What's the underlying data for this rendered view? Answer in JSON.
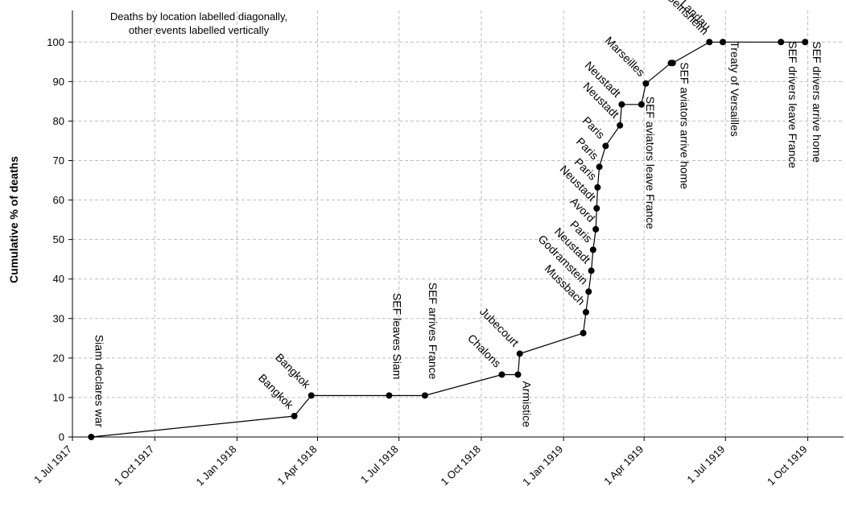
{
  "chart_data": {
    "type": "line",
    "title": "",
    "xlabel": "",
    "ylabel": "Cumulative % of deaths",
    "note_lines": [
      "Deaths by location labelled diagonally,",
      "other events labelled vertically"
    ],
    "xlim": [
      "1917-07-01",
      "1919-11-10"
    ],
    "ylim": [
      0,
      108
    ],
    "grid": true,
    "x_ticks": [
      {
        "date": "1917-07-01",
        "label": "1 Jul 1917"
      },
      {
        "date": "1917-10-01",
        "label": "1 Oct 1917"
      },
      {
        "date": "1918-01-01",
        "label": "1 Jan 1918"
      },
      {
        "date": "1918-04-01",
        "label": "1 Apr 1918"
      },
      {
        "date": "1918-07-01",
        "label": "1 Jul 1918"
      },
      {
        "date": "1918-10-01",
        "label": "1 Oct 1918"
      },
      {
        "date": "1919-01-01",
        "label": "1 Jan 1919"
      },
      {
        "date": "1919-04-01",
        "label": "1 Apr 1919"
      },
      {
        "date": "1919-07-01",
        "label": "1 Jul 1919"
      },
      {
        "date": "1919-10-01",
        "label": "1 Oct 1919"
      }
    ],
    "y_ticks": [
      0,
      10,
      20,
      30,
      40,
      50,
      60,
      70,
      80,
      90,
      100
    ],
    "series": [
      {
        "points": [
          {
            "x": "1917-07-22",
            "y": 0,
            "label": "Siam declares war",
            "kind": "event"
          },
          {
            "x": "1918-03-06",
            "y": 5.3,
            "label": "Bangkok",
            "kind": "death"
          },
          {
            "x": "1918-03-25",
            "y": 10.5,
            "label": "Bangkok",
            "kind": "death"
          },
          {
            "x": "1918-06-20",
            "y": 10.5,
            "label": "SEF leaves Siam",
            "kind": "event"
          },
          {
            "x": "1918-07-30",
            "y": 10.5,
            "label": "SEF arrives France",
            "kind": "event"
          },
          {
            "x": "1918-10-24",
            "y": 15.8,
            "label": "Chalons",
            "kind": "death"
          },
          {
            "x": "1918-11-11",
            "y": 15.8,
            "label": "Armistice",
            "kind": "event"
          },
          {
            "x": "1918-11-13",
            "y": 21.1,
            "label": "Jubecourt",
            "kind": "death"
          },
          {
            "x": "1919-01-23",
            "y": 26.3,
            "label": "",
            "kind": "death"
          },
          {
            "x": "1919-01-26",
            "y": 31.6,
            "label": "Mussbach",
            "kind": "death"
          },
          {
            "x": "1919-01-29",
            "y": 36.8,
            "label": "Godramstein",
            "kind": "death"
          },
          {
            "x": "1919-02-01",
            "y": 42.1,
            "label": "Neustadt",
            "kind": "death"
          },
          {
            "x": "1919-02-03",
            "y": 47.4,
            "label": "Paris",
            "kind": "death"
          },
          {
            "x": "1919-02-06",
            "y": 52.6,
            "label": "Avord",
            "kind": "death"
          },
          {
            "x": "1919-02-07",
            "y": 57.9,
            "label": "Neustadt",
            "kind": "death"
          },
          {
            "x": "1919-02-08",
            "y": 63.2,
            "label": "Paris",
            "kind": "death"
          },
          {
            "x": "1919-02-10",
            "y": 68.4,
            "label": "Paris",
            "kind": "death"
          },
          {
            "x": "1919-02-17",
            "y": 73.7,
            "label": "Paris",
            "kind": "death"
          },
          {
            "x": "1919-03-05",
            "y": 78.9,
            "label": "Neustadt",
            "kind": "death"
          },
          {
            "x": "1919-03-07",
            "y": 84.2,
            "label": "Neustadt",
            "kind": "death"
          },
          {
            "x": "1919-03-29",
            "y": 84.2,
            "label": "SEF aviators leave France",
            "kind": "event"
          },
          {
            "x": "1919-04-03",
            "y": 89.5,
            "label": "Marseilles",
            "kind": "death"
          },
          {
            "x": "1919-05-01",
            "y": 94.7,
            "label": "",
            "kind": "death"
          },
          {
            "x": "1919-05-03",
            "y": 94.7,
            "label": "SEF aviators arrive home",
            "kind": "event"
          },
          {
            "x": "1919-06-13",
            "y": 100,
            "label": "Geinsheim",
            "kind": "death"
          },
          {
            "x": "1919-06-28",
            "y": 100,
            "label": "Treaty of Versailles",
            "kind": "event"
          },
          {
            "x": "1919-09-01",
            "y": 100,
            "label": "SEF drivers leave France",
            "kind": "event"
          },
          {
            "x": "1919-09-28",
            "y": 100,
            "label": "SEF drivers arrive home",
            "kind": "event"
          }
        ]
      }
    ],
    "extra_labels": [
      {
        "text": "Landau",
        "x": "1919-06-13",
        "y": 100,
        "kind": "death"
      }
    ]
  }
}
